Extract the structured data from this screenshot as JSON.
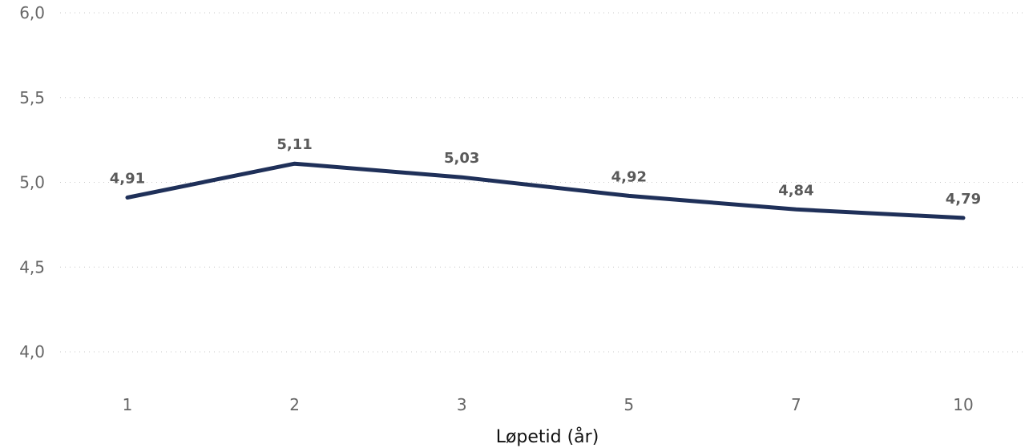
{
  "chart_data": {
    "type": "line",
    "title": "",
    "xlabel": "Løpetid (år)",
    "ylabel": "",
    "categories": [
      "1",
      "2",
      "3",
      "5",
      "7",
      "10"
    ],
    "series": [
      {
        "values": [
          4.91,
          5.11,
          5.03,
          4.92,
          4.84,
          4.79
        ],
        "data_labels": [
          "4,91",
          "5,11",
          "5,03",
          "4,92",
          "4,84",
          "4,79"
        ],
        "color": "#1f3059"
      }
    ],
    "y_ticks": [
      {
        "value": 4.0,
        "label": "4,0"
      },
      {
        "value": 4.5,
        "label": "4,5"
      },
      {
        "value": 5.0,
        "label": "5,0"
      },
      {
        "value": 5.5,
        "label": "5,5"
      },
      {
        "value": 6.0,
        "label": "6,0"
      }
    ],
    "ylim": [
      4.0,
      6.0
    ],
    "grid": true,
    "grid_style": "dotted",
    "legend": "none"
  }
}
